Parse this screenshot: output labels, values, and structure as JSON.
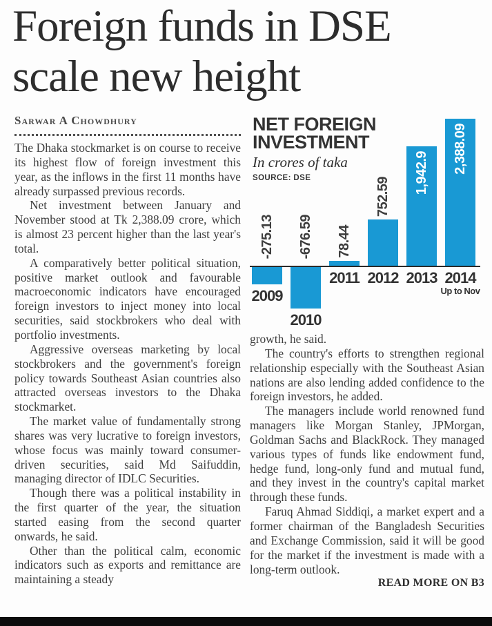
{
  "headline": {
    "line1": "Foreign funds in DSE",
    "line2": "scale new height"
  },
  "byline": "Sarwar A Chowdhury",
  "article": {
    "left": [
      "The Dhaka stockmarket is on course to receive its highest flow of foreign investment this year, as the inflows in the first 11 months have already surpassed previous records.",
      "Net investment between January and November stood at Tk 2,388.09 crore, which is almost 23 percent higher than the last year's total.",
      "A comparatively better political situation, positive market outlook and favourable macroeconomic indicators have encouraged foreign investors to inject money into local securities, said stockbrokers who deal with portfolio investments.",
      "Aggressive overseas marketing by local stockbrokers and the government's foreign policy towards Southeast Asian countries also attracted overseas investors to the Dhaka stockmarket.",
      "The market value of fundamentally strong shares was very lucrative to foreign investors, whose focus was mainly toward consumer-driven securities, said Md Saifuddin, managing director of IDLC Securities.",
      "Though there was a political instability in the first quarter of the year, the situation started easing from the second quarter onwards, he said.",
      "Other than the political calm, economic indicators such as exports and remittance are maintaining a steady"
    ],
    "right": [
      "growth, he said.",
      "The country's efforts to strengthen regional relationship especially with the Southeast Asian nations are also lending added confidence to the foreign investors, he added.",
      "The managers include world renowned fund managers like Morgan Stanley, JPMorgan, Goldman Sachs and BlackRock. They managed various types of funds like endowment fund, hedge fund, long-only fund and mutual fund, and they invest in the country's capital market through these funds.",
      "Faruq Ahmad Siddiqi, a market expert and a former chairman of the Bangladesh Securities and Exchange Commission, said it will be good for the market if the investment is made with a long-term outlook."
    ]
  },
  "footer": {
    "read_more": "READ MORE ON B3"
  },
  "chart_data": {
    "type": "bar",
    "title": "NET FOREIGN INVESTMENT",
    "subtitle": "In crores of taka",
    "source": "SOURCE: DSE",
    "categories": [
      "2009",
      "2010",
      "2011",
      "2012",
      "2013",
      "2014"
    ],
    "values": [
      -275.13,
      -676.59,
      78.44,
      752.59,
      1942.9,
      2388.09
    ],
    "value_labels": [
      "-275.13",
      "-676.59",
      "78.44",
      "752.59",
      "1,942.9",
      "2,388.09"
    ],
    "sub_labels": [
      "",
      "",
      "",
      "",
      "",
      "Up to Nov"
    ],
    "unit": "crores of taka",
    "baseline": 0,
    "ylim": [
      -700,
      2400
    ],
    "gridlines": false,
    "legend": "none",
    "bar_color": "#1999d4",
    "label_color_inside": "#ffffff",
    "label_color_outside": "#3d3d3d"
  },
  "colors": {
    "headline": "#2d2d2d",
    "body_text": "#3e3e3e",
    "bottom_bar": "#0c0c0c"
  }
}
